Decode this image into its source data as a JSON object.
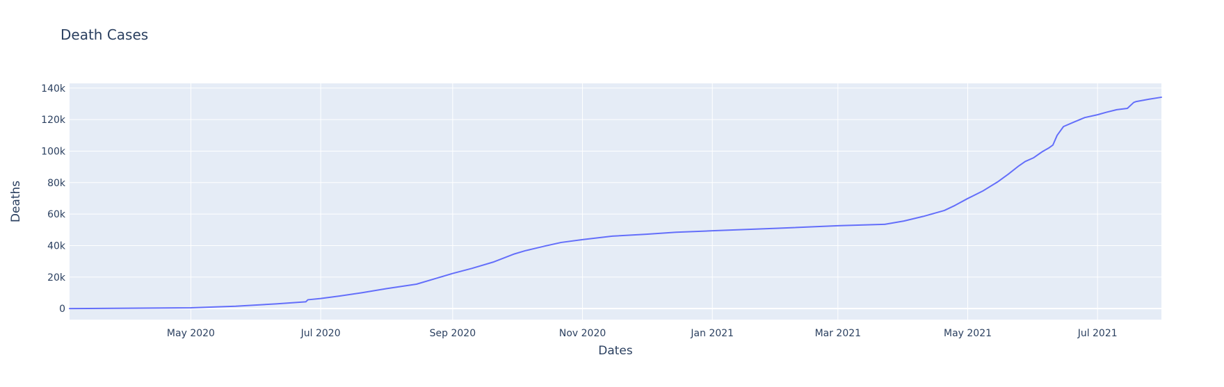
{
  "colors": {
    "plot_background": "#e5ecf6",
    "gridline": "#ffffff",
    "line": "#636efa",
    "text": "#2a3f5f"
  },
  "chart_data": {
    "type": "line",
    "title": "Death Cases",
    "xlabel": "Dates",
    "ylabel": "Deaths",
    "xlim": [
      "2020-03-05",
      "2021-07-31"
    ],
    "ylim": [
      -7000,
      143000
    ],
    "x_ticks": [
      {
        "date": "2020-05-01",
        "label": "May 2020"
      },
      {
        "date": "2020-07-01",
        "label": "Jul 2020"
      },
      {
        "date": "2020-09-01",
        "label": "Sep 2020"
      },
      {
        "date": "2020-11-01",
        "label": "Nov 2020"
      },
      {
        "date": "2021-01-01",
        "label": "Jan 2021"
      },
      {
        "date": "2021-03-01",
        "label": "Mar 2021"
      },
      {
        "date": "2021-05-01",
        "label": "May 2021"
      },
      {
        "date": "2021-07-01",
        "label": "Jul 2021"
      }
    ],
    "y_ticks": [
      {
        "value": 0,
        "label": "0"
      },
      {
        "value": 20000,
        "label": "20k"
      },
      {
        "value": 40000,
        "label": "40k"
      },
      {
        "value": 60000,
        "label": "60k"
      },
      {
        "value": 80000,
        "label": "80k"
      },
      {
        "value": 100000,
        "label": "100k"
      },
      {
        "value": 120000,
        "label": "120k"
      },
      {
        "value": 140000,
        "label": "140k"
      }
    ],
    "grid": true,
    "series": [
      {
        "x": [
          "2020-03-05",
          "2020-04-01",
          "2020-05-01",
          "2020-05-22",
          "2020-06-10",
          "2020-06-24",
          "2020-06-25",
          "2020-07-01",
          "2020-07-10",
          "2020-07-20",
          "2020-08-01",
          "2020-08-15",
          "2020-08-25",
          "2020-09-01",
          "2020-09-10",
          "2020-09-20",
          "2020-09-30",
          "2020-10-05",
          "2020-10-15",
          "2020-10-22",
          "2020-11-01",
          "2020-11-15",
          "2020-12-01",
          "2020-12-15",
          "2021-01-01",
          "2021-02-01",
          "2021-03-01",
          "2021-03-23",
          "2021-04-01",
          "2021-04-10",
          "2021-04-20",
          "2021-04-25",
          "2021-05-01",
          "2021-05-08",
          "2021-05-15",
          "2021-05-20",
          "2021-05-25",
          "2021-05-28",
          "2021-06-01",
          "2021-06-05",
          "2021-06-08",
          "2021-06-10",
          "2021-06-12",
          "2021-06-15",
          "2021-06-20",
          "2021-06-25",
          "2021-07-01",
          "2021-07-05",
          "2021-07-10",
          "2021-07-15",
          "2021-07-18",
          "2021-07-19",
          "2021-07-25",
          "2021-07-31"
        ],
        "y": [
          0,
          200,
          500,
          1500,
          3000,
          4300,
          5600,
          6400,
          8000,
          10000,
          12700,
          15500,
          19500,
          22300,
          25500,
          29500,
          34700,
          36700,
          39900,
          42000,
          43800,
          46000,
          47200,
          48500,
          49400,
          51000,
          52600,
          53500,
          55600,
          58500,
          62300,
          65500,
          69900,
          74600,
          80400,
          85300,
          90600,
          93400,
          95800,
          99600,
          101900,
          103800,
          110000,
          115600,
          118500,
          121300,
          123100,
          124600,
          126300,
          127100,
          130900,
          131400,
          132900,
          134200
        ]
      }
    ]
  }
}
